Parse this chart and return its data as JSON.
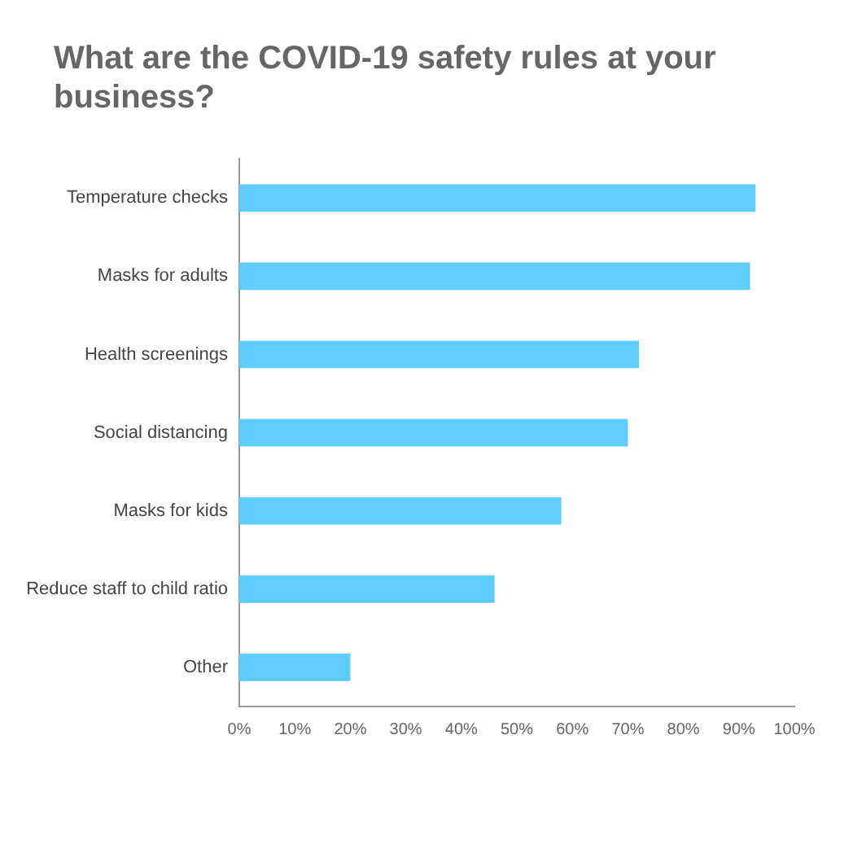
{
  "chart_data": {
    "type": "bar",
    "orientation": "horizontal",
    "title": "What are the COVID-19 safety rules at your business?",
    "categories": [
      "Temperature checks",
      "Masks for adults",
      "Health screenings",
      "Social distancing",
      "Masks for kids",
      "Reduce staff to child ratio",
      "Other"
    ],
    "values": [
      93,
      92,
      72,
      70,
      58,
      46,
      20
    ],
    "color": "#5ccdfc",
    "xlim": [
      0,
      100
    ],
    "xticks": [
      {
        "value": 0,
        "label": "0%"
      },
      {
        "value": 10,
        "label": "10%"
      },
      {
        "value": 20,
        "label": "20%"
      },
      {
        "value": 30,
        "label": "30%"
      },
      {
        "value": 40,
        "label": "40%"
      },
      {
        "value": 50,
        "label": "50%"
      },
      {
        "value": 60,
        "label": "60%"
      },
      {
        "value": 70,
        "label": "70%"
      },
      {
        "value": 80,
        "label": "80%"
      },
      {
        "value": 90,
        "label": "90%"
      },
      {
        "value": 100,
        "label": "100%"
      }
    ],
    "grid": false,
    "legend": false
  }
}
